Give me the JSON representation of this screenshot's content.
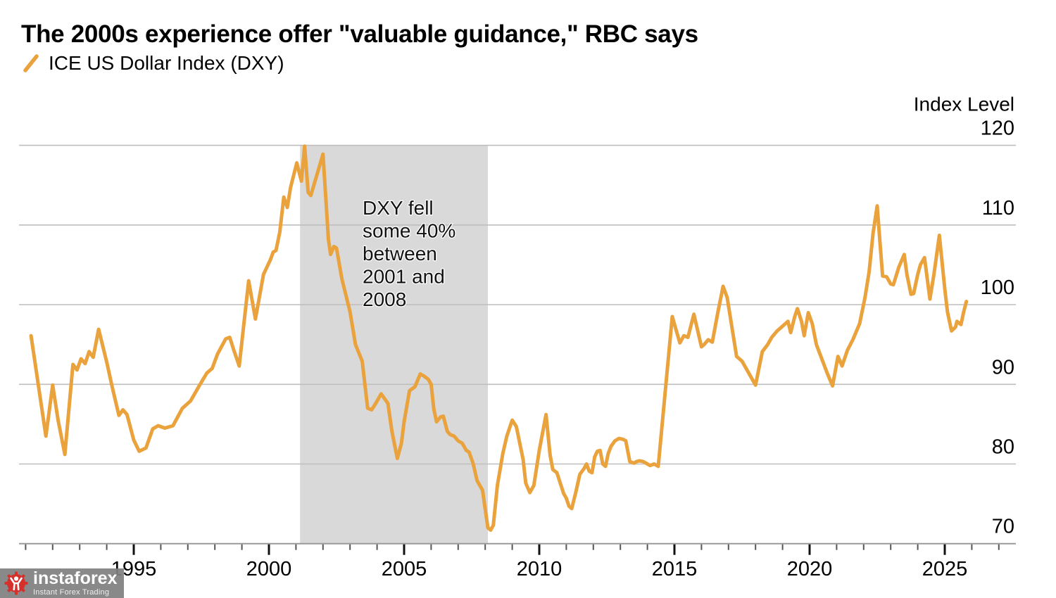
{
  "title": "The 2000s experience offer \"valuable guidance,\" RBC says",
  "legend": {
    "series_label": "ICE US Dollar Index (DXY)"
  },
  "watermark": {
    "brand": "instaforex",
    "tagline": "Instant Forex Trading"
  },
  "colors": {
    "line": "#E9A23C",
    "shade": "#D9D9D9",
    "grid": "#BEBEBE",
    "axis": "#9A9A9A",
    "tick_major": "#111111",
    "tick_minor": "#555555",
    "text": "#000000",
    "annotation_text": "#111111",
    "watermark_bg": "#808080",
    "watermark_red": "#D6302C"
  },
  "chart_data": {
    "type": "line",
    "title": "The 2000s experience offer \"valuable guidance,\" RBC says",
    "xlabel": "",
    "ylabel": "Index Level",
    "ylim": [
      70,
      120
    ],
    "yticks": [
      70,
      80,
      90,
      100,
      110,
      120
    ],
    "xlim": [
      1990.8,
      2027.6
    ],
    "xticks_labeled": [
      1995,
      2000,
      2005,
      2010,
      2015,
      2020,
      2025
    ],
    "xtick_minor_range": [
      1991,
      2027
    ],
    "grid": "horizontal",
    "legend_position": "top-left",
    "shaded_region": {
      "from_year": 2001.15,
      "to_year": 2008.1,
      "color": "#D9D9D9",
      "annotation": [
        "DXY fell",
        "some 40%",
        "between",
        "2001 and",
        "2008"
      ]
    },
    "series": [
      {
        "name": "ICE US Dollar Index (DXY)",
        "color": "#E9A23C",
        "points": [
          [
            1991.2,
            96.1
          ],
          [
            1991.75,
            83.5
          ],
          [
            1992.0,
            89.9
          ],
          [
            1992.2,
            85.5
          ],
          [
            1992.45,
            81.2
          ],
          [
            1992.75,
            92.5
          ],
          [
            1992.9,
            91.8
          ],
          [
            1993.05,
            93.2
          ],
          [
            1993.2,
            92.6
          ],
          [
            1993.35,
            94.1
          ],
          [
            1993.5,
            93.4
          ],
          [
            1993.7,
            96.9
          ],
          [
            1994.0,
            92.8
          ],
          [
            1994.2,
            89.7
          ],
          [
            1994.45,
            86.1
          ],
          [
            1994.6,
            86.8
          ],
          [
            1994.75,
            86.2
          ],
          [
            1995.0,
            83.0
          ],
          [
            1995.2,
            81.6
          ],
          [
            1995.45,
            82.0
          ],
          [
            1995.7,
            84.4
          ],
          [
            1995.9,
            84.8
          ],
          [
            1996.15,
            84.5
          ],
          [
            1996.45,
            84.8
          ],
          [
            1996.8,
            87.0
          ],
          [
            1997.1,
            87.9
          ],
          [
            1997.4,
            89.7
          ],
          [
            1997.7,
            91.4
          ],
          [
            1997.9,
            92.0
          ],
          [
            1998.1,
            93.8
          ],
          [
            1998.4,
            95.7
          ],
          [
            1998.55,
            95.9
          ],
          [
            1998.7,
            94.3
          ],
          [
            1998.9,
            92.3
          ],
          [
            1999.25,
            103.0
          ],
          [
            1999.5,
            98.2
          ],
          [
            1999.8,
            103.8
          ],
          [
            2000.05,
            105.6
          ],
          [
            2000.16,
            106.6
          ],
          [
            2000.26,
            106.8
          ],
          [
            2000.4,
            109.1
          ],
          [
            2000.55,
            113.5
          ],
          [
            2000.68,
            112.2
          ],
          [
            2000.8,
            114.7
          ],
          [
            2001.03,
            117.8
          ],
          [
            2001.2,
            115.5
          ],
          [
            2001.32,
            119.9
          ],
          [
            2001.45,
            114.1
          ],
          [
            2001.55,
            113.7
          ],
          [
            2002.0,
            118.9
          ],
          [
            2002.2,
            108.2
          ],
          [
            2002.28,
            106.3
          ],
          [
            2002.4,
            107.3
          ],
          [
            2002.5,
            107.1
          ],
          [
            2002.7,
            103.2
          ],
          [
            2003.0,
            99.1
          ],
          [
            2003.2,
            95.0
          ],
          [
            2003.45,
            92.9
          ],
          [
            2003.65,
            87.0
          ],
          [
            2003.8,
            86.8
          ],
          [
            2003.95,
            87.6
          ],
          [
            2004.15,
            88.8
          ],
          [
            2004.4,
            87.6
          ],
          [
            2004.55,
            84.1
          ],
          [
            2004.75,
            80.7
          ],
          [
            2004.9,
            82.6
          ],
          [
            2005.0,
            85.3
          ],
          [
            2005.2,
            89.2
          ],
          [
            2005.4,
            89.7
          ],
          [
            2005.6,
            91.3
          ],
          [
            2005.75,
            91.0
          ],
          [
            2005.9,
            90.6
          ],
          [
            2006.0,
            90.0
          ],
          [
            2006.1,
            86.9
          ],
          [
            2006.2,
            85.3
          ],
          [
            2006.35,
            85.9
          ],
          [
            2006.45,
            86.0
          ],
          [
            2006.6,
            84.1
          ],
          [
            2006.7,
            83.7
          ],
          [
            2006.85,
            83.5
          ],
          [
            2007.0,
            82.9
          ],
          [
            2007.15,
            82.6
          ],
          [
            2007.3,
            81.7
          ],
          [
            2007.4,
            81.5
          ],
          [
            2007.55,
            80.1
          ],
          [
            2007.7,
            77.9
          ],
          [
            2007.9,
            76.7
          ],
          [
            2008.1,
            72.0
          ],
          [
            2008.2,
            71.7
          ],
          [
            2008.3,
            72.3
          ],
          [
            2008.45,
            77.3
          ],
          [
            2008.65,
            81.3
          ],
          [
            2008.8,
            83.5
          ],
          [
            2009.0,
            85.5
          ],
          [
            2009.15,
            84.7
          ],
          [
            2009.4,
            80.6
          ],
          [
            2009.5,
            77.6
          ],
          [
            2009.65,
            76.4
          ],
          [
            2009.8,
            77.3
          ],
          [
            2010.0,
            81.7
          ],
          [
            2010.25,
            86.2
          ],
          [
            2010.4,
            81.1
          ],
          [
            2010.5,
            79.3
          ],
          [
            2010.65,
            78.9
          ],
          [
            2010.9,
            76.3
          ],
          [
            2011.0,
            75.7
          ],
          [
            2011.1,
            74.7
          ],
          [
            2011.2,
            74.4
          ],
          [
            2011.35,
            76.4
          ],
          [
            2011.5,
            78.7
          ],
          [
            2011.65,
            79.4
          ],
          [
            2011.75,
            80.0
          ],
          [
            2011.85,
            79.1
          ],
          [
            2011.95,
            78.9
          ],
          [
            2012.05,
            80.9
          ],
          [
            2012.15,
            81.6
          ],
          [
            2012.25,
            81.7
          ],
          [
            2012.35,
            80.0
          ],
          [
            2012.45,
            79.7
          ],
          [
            2012.55,
            81.3
          ],
          [
            2012.65,
            82.2
          ],
          [
            2012.8,
            82.9
          ],
          [
            2012.95,
            83.2
          ],
          [
            2013.1,
            83.1
          ],
          [
            2013.2,
            82.9
          ],
          [
            2013.35,
            80.3
          ],
          [
            2013.5,
            80.1
          ],
          [
            2013.6,
            80.3
          ],
          [
            2013.7,
            80.4
          ],
          [
            2013.85,
            80.3
          ],
          [
            2014.1,
            79.8
          ],
          [
            2014.25,
            80.0
          ],
          [
            2014.4,
            79.7
          ],
          [
            2014.92,
            98.5
          ],
          [
            2015.2,
            95.2
          ],
          [
            2015.35,
            96.1
          ],
          [
            2015.5,
            95.9
          ],
          [
            2015.72,
            98.8
          ],
          [
            2016.0,
            94.7
          ],
          [
            2016.1,
            95.0
          ],
          [
            2016.25,
            95.6
          ],
          [
            2016.4,
            95.3
          ],
          [
            2016.6,
            98.9
          ],
          [
            2016.8,
            102.3
          ],
          [
            2016.95,
            100.9
          ],
          [
            2017.3,
            93.5
          ],
          [
            2017.5,
            92.9
          ],
          [
            2017.65,
            92.0
          ],
          [
            2018.0,
            89.9
          ],
          [
            2018.25,
            94.1
          ],
          [
            2018.45,
            95.0
          ],
          [
            2018.6,
            95.9
          ],
          [
            2018.8,
            96.7
          ],
          [
            2019.0,
            97.3
          ],
          [
            2019.2,
            97.9
          ],
          [
            2019.3,
            96.5
          ],
          [
            2019.45,
            98.5
          ],
          [
            2019.55,
            99.5
          ],
          [
            2019.7,
            97.9
          ],
          [
            2019.8,
            96.1
          ],
          [
            2019.95,
            99.0
          ],
          [
            2020.1,
            97.6
          ],
          [
            2020.25,
            95.0
          ],
          [
            2020.45,
            93.2
          ],
          [
            2020.65,
            91.4
          ],
          [
            2020.85,
            89.8
          ],
          [
            2021.05,
            93.5
          ],
          [
            2021.2,
            92.3
          ],
          [
            2021.4,
            94.3
          ],
          [
            2021.6,
            95.6
          ],
          [
            2021.85,
            97.6
          ],
          [
            2022.05,
            100.9
          ],
          [
            2022.2,
            104.1
          ],
          [
            2022.35,
            109.0
          ],
          [
            2022.5,
            112.4
          ],
          [
            2022.6,
            108.0
          ],
          [
            2022.7,
            103.6
          ],
          [
            2022.85,
            103.5
          ],
          [
            2023.0,
            102.6
          ],
          [
            2023.1,
            102.5
          ],
          [
            2023.3,
            104.7
          ],
          [
            2023.5,
            106.3
          ],
          [
            2023.6,
            103.8
          ],
          [
            2023.75,
            101.3
          ],
          [
            2023.85,
            101.4
          ],
          [
            2024.0,
            103.8
          ],
          [
            2024.1,
            105.0
          ],
          [
            2024.25,
            105.9
          ],
          [
            2024.45,
            100.7
          ],
          [
            2024.6,
            103.8
          ],
          [
            2024.8,
            108.7
          ],
          [
            2025.0,
            102.0
          ],
          [
            2025.1,
            99.1
          ],
          [
            2025.25,
            96.7
          ],
          [
            2025.4,
            97.2
          ],
          [
            2025.45,
            97.9
          ],
          [
            2025.6,
            97.5
          ],
          [
            2025.7,
            99.1
          ],
          [
            2025.8,
            100.4
          ]
        ]
      }
    ]
  }
}
